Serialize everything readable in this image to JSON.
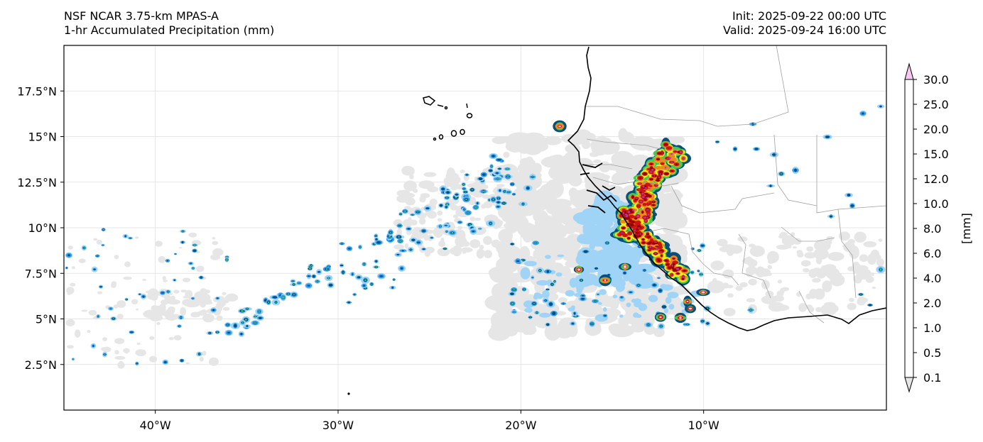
{
  "header": {
    "model": "NSF NCAR 3.75-km MPAS-A",
    "field": "1-hr Accumulated Precipitation (mm)",
    "init": "Init: 2025-09-22 00:00 UTC",
    "valid": "Valid: 2025-09-24 16:00 UTC"
  },
  "map": {
    "lon_range": [
      -45,
      0
    ],
    "lat_range": [
      0,
      20
    ],
    "lat_ticks": [
      {
        "value": 2.5,
        "label": "2.5°N"
      },
      {
        "value": 5,
        "label": "5°N"
      },
      {
        "value": 7.5,
        "label": "7.5°N"
      },
      {
        "value": 10,
        "label": "10°N"
      },
      {
        "value": 12.5,
        "label": "12.5°N"
      },
      {
        "value": 15,
        "label": "15°N"
      },
      {
        "value": 17.5,
        "label": "17.5°N"
      }
    ],
    "lon_ticks": [
      {
        "value": -40,
        "label": "40°W"
      },
      {
        "value": -30,
        "label": "30°W"
      },
      {
        "value": -20,
        "label": "20°W"
      },
      {
        "value": -10,
        "label": "10°W"
      }
    ],
    "grid": true
  },
  "colorbar": {
    "units": "[mm]",
    "levels": [
      "0.1",
      "0.5",
      "1.0",
      "2.0",
      "4.0",
      "6.0",
      "8.0",
      "10.0",
      "12.0",
      "15.0",
      "20.0",
      "25.0",
      "30.0"
    ],
    "colors": [
      "#e6e6e6",
      "#9fd4f7",
      "#2e9ef2",
      "#0a4f7a",
      "#45c856",
      "#f2f21a",
      "#f5b82e",
      "#e88a1e",
      "#cc1414",
      "#990000",
      "#b03cb4",
      "#f9c8f2"
    ],
    "extend": "both"
  },
  "colors": {
    "land_outline": "#000000",
    "borders": "#999999",
    "gridline": "#dddddd"
  }
}
